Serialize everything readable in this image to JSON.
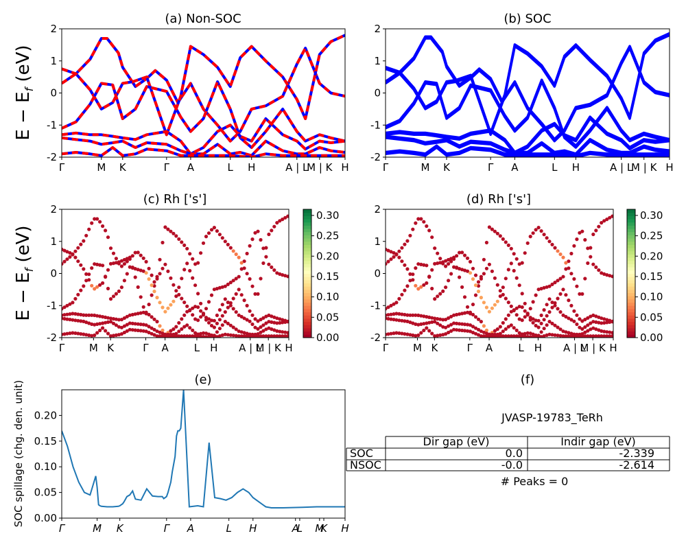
{
  "chart_data": [
    {
      "id": "a",
      "type": "line",
      "title": "(a) Non-SOC",
      "ylabel": "E − E_f (eV)",
      "ylim": [
        -2,
        2
      ],
      "yticks": [
        -2,
        -1,
        0,
        1,
        2
      ],
      "kpath_labels": [
        "Γ",
        "M",
        "K",
        "Γ",
        "A",
        "L",
        "H",
        "A | L",
        "M | K",
        "H"
      ],
      "kpath_pos": [
        0,
        0.14,
        0.215,
        0.37,
        0.455,
        0.595,
        0.67,
        0.83,
        0.91,
        1.0
      ],
      "series": [
        {
          "color": "#0000ff",
          "values": [
            [
              0,
              0.3
            ],
            [
              0.05,
              0.6
            ],
            [
              0.1,
              1.05
            ],
            [
              0.14,
              1.7
            ],
            [
              0.16,
              1.7
            ],
            [
              0.2,
              1.25
            ],
            [
              0.215,
              0.8
            ],
            [
              0.26,
              0.2
            ],
            [
              0.3,
              0.45
            ],
            [
              0.33,
              0.7
            ],
            [
              0.37,
              0.4
            ],
            [
              0.41,
              -0.3
            ],
            [
              0.455,
              0.3
            ],
            [
              0.5,
              -0.5
            ],
            [
              0.55,
              -1.0
            ],
            [
              0.595,
              -1.5
            ],
            [
              0.63,
              -1.2
            ],
            [
              0.67,
              -0.5
            ],
            [
              0.72,
              -0.4
            ],
            [
              0.78,
              -0.1
            ],
            [
              0.83,
              0.9
            ],
            [
              0.86,
              1.4
            ],
            [
              0.91,
              0.3
            ],
            [
              0.95,
              0.0
            ],
            [
              1.0,
              -0.1
            ]
          ]
        },
        {
          "color": "#0000ff",
          "values": [
            [
              0,
              0.75
            ],
            [
              0.05,
              0.6
            ],
            [
              0.1,
              0.1
            ],
            [
              0.14,
              -0.5
            ],
            [
              0.18,
              -0.3
            ],
            [
              0.215,
              0.3
            ],
            [
              0.25,
              0.35
            ],
            [
              0.3,
              0.5
            ],
            [
              0.37,
              -1.3
            ],
            [
              0.42,
              -0.1
            ],
            [
              0.455,
              1.45
            ],
            [
              0.5,
              1.2
            ],
            [
              0.55,
              0.8
            ],
            [
              0.595,
              0.2
            ],
            [
              0.63,
              1.1
            ],
            [
              0.67,
              1.45
            ],
            [
              0.72,
              1.0
            ],
            [
              0.78,
              0.5
            ],
            [
              0.83,
              -0.2
            ],
            [
              0.86,
              -0.8
            ],
            [
              0.91,
              1.2
            ],
            [
              0.95,
              1.6
            ],
            [
              1.0,
              1.8
            ]
          ]
        },
        {
          "color": "#0000ff",
          "values": [
            [
              0,
              -1.1
            ],
            [
              0.05,
              -0.9
            ],
            [
              0.1,
              -0.35
            ],
            [
              0.14,
              0.3
            ],
            [
              0.18,
              0.25
            ],
            [
              0.215,
              -0.8
            ],
            [
              0.26,
              -0.5
            ],
            [
              0.3,
              0.2
            ],
            [
              0.37,
              0.05
            ],
            [
              0.42,
              -0.75
            ],
            [
              0.455,
              -1.2
            ],
            [
              0.5,
              -0.8
            ],
            [
              0.55,
              0.35
            ],
            [
              0.595,
              -0.5
            ],
            [
              0.63,
              -1.4
            ],
            [
              0.67,
              -1.7
            ],
            [
              0.72,
              -1.2
            ],
            [
              0.78,
              -0.5
            ],
            [
              0.83,
              -1.2
            ],
            [
              0.86,
              -1.5
            ],
            [
              0.91,
              -1.3
            ],
            [
              0.95,
              -1.4
            ],
            [
              1.0,
              -1.5
            ]
          ]
        },
        {
          "color": "#0000ff",
          "values": [
            [
              0,
              -1.3
            ],
            [
              0.05,
              -1.25
            ],
            [
              0.1,
              -1.3
            ],
            [
              0.14,
              -1.3
            ],
            [
              0.18,
              -1.35
            ],
            [
              0.215,
              -1.4
            ],
            [
              0.26,
              -1.45
            ],
            [
              0.3,
              -1.3
            ],
            [
              0.37,
              -1.2
            ],
            [
              0.42,
              -1.5
            ],
            [
              0.455,
              -1.9
            ],
            [
              0.5,
              -1.7
            ],
            [
              0.55,
              -1.2
            ],
            [
              0.595,
              -1.0
            ],
            [
              0.63,
              -1.35
            ],
            [
              0.67,
              -1.5
            ],
            [
              0.72,
              -0.8
            ],
            [
              0.78,
              -1.3
            ],
            [
              0.83,
              -1.5
            ],
            [
              0.86,
              -1.75
            ],
            [
              0.91,
              -1.5
            ],
            [
              0.95,
              -1.55
            ],
            [
              1.0,
              -1.5
            ]
          ]
        },
        {
          "color": "#0000ff",
          "values": [
            [
              0,
              -1.4
            ],
            [
              0.05,
              -1.45
            ],
            [
              0.1,
              -1.5
            ],
            [
              0.14,
              -1.6
            ],
            [
              0.18,
              -1.55
            ],
            [
              0.215,
              -1.5
            ],
            [
              0.26,
              -1.7
            ],
            [
              0.3,
              -1.55
            ],
            [
              0.37,
              -1.6
            ],
            [
              0.42,
              -1.8
            ],
            [
              0.455,
              -1.9
            ],
            [
              0.5,
              -1.9
            ],
            [
              0.55,
              -1.6
            ],
            [
              0.595,
              -1.9
            ],
            [
              0.63,
              -1.85
            ],
            [
              0.67,
              -1.95
            ],
            [
              0.72,
              -1.5
            ],
            [
              0.78,
              -1.8
            ],
            [
              0.83,
              -1.9
            ],
            [
              0.86,
              -1.9
            ],
            [
              0.91,
              -1.7
            ],
            [
              0.95,
              -1.8
            ],
            [
              1.0,
              -1.85
            ]
          ]
        },
        {
          "color": "#0000ff",
          "values": [
            [
              0,
              -1.9
            ],
            [
              0.05,
              -1.85
            ],
            [
              0.1,
              -1.9
            ],
            [
              0.14,
              -1.95
            ],
            [
              0.18,
              -1.7
            ],
            [
              0.215,
              -1.95
            ],
            [
              0.26,
              -1.9
            ],
            [
              0.3,
              -1.75
            ],
            [
              0.37,
              -1.8
            ],
            [
              0.42,
              -1.95
            ],
            [
              0.455,
              -1.95
            ],
            [
              0.5,
              -1.95
            ],
            [
              0.55,
              -1.95
            ],
            [
              0.595,
              -1.95
            ],
            [
              0.67,
              -2.0
            ],
            [
              0.72,
              -1.9
            ],
            [
              0.78,
              -1.95
            ],
            [
              0.83,
              -1.95
            ],
            [
              0.91,
              -1.95
            ],
            [
              1.0,
              -1.95
            ]
          ]
        }
      ],
      "overlay_color": "#ff0000"
    },
    {
      "id": "b",
      "type": "line",
      "title": "(b) SOC",
      "ylim": [
        -2,
        2
      ],
      "yticks": [
        -2,
        -1,
        0,
        1,
        2
      ],
      "kpath_labels": [
        "Γ",
        "M",
        "K",
        "Γ",
        "A",
        "L",
        "H",
        "A | L",
        "M | K",
        "H"
      ],
      "kpath_pos": [
        0,
        0.14,
        0.215,
        0.37,
        0.455,
        0.595,
        0.67,
        0.83,
        0.91,
        1.0
      ],
      "color": "#0000ff",
      "series_offsets": [
        0,
        0.06
      ]
    },
    {
      "id": "c",
      "type": "scatter",
      "title": "(c)  Rh ['s']",
      "ylabel": "E − E_f (eV)",
      "ylim": [
        -2,
        2
      ],
      "yticks": [
        -2,
        -1,
        0,
        1,
        2
      ],
      "kpath_labels": [
        "Γ",
        "M",
        "K",
        "Γ",
        "A",
        "L",
        "H",
        "A | L",
        "M | K",
        "H"
      ],
      "kpath_pos": [
        0,
        0.14,
        0.215,
        0.37,
        0.455,
        0.595,
        0.67,
        0.83,
        0.91,
        1.0
      ],
      "colorbar": {
        "min": 0.0,
        "max": 0.3,
        "ticks": [
          "0.30",
          "0.25",
          "0.20",
          "0.15",
          "0.10",
          "0.05",
          "0.00"
        ],
        "colormap": "RdYlGn"
      }
    },
    {
      "id": "d",
      "type": "scatter",
      "title": "(d) Rh ['s']",
      "ylim": [
        -2,
        2
      ],
      "yticks": [
        -2,
        -1,
        0,
        1,
        2
      ],
      "kpath_labels": [
        "Γ",
        "M",
        "K",
        "Γ",
        "A",
        "L",
        "H",
        "A | L",
        "M | K",
        "H"
      ],
      "kpath_pos": [
        0,
        0.14,
        0.215,
        0.37,
        0.455,
        0.595,
        0.67,
        0.83,
        0.91,
        1.0
      ],
      "colorbar": {
        "min": 0.0,
        "max": 0.3,
        "ticks": [
          "0.30",
          "0.25",
          "0.20",
          "0.15",
          "0.10",
          "0.05",
          "0.00"
        ],
        "colormap": "RdYlGn"
      }
    },
    {
      "id": "e",
      "type": "line",
      "title": "(e)",
      "ylabel": "SOC spillage (chg. den. unit)",
      "ylim": [
        0,
        0.25
      ],
      "yticks": [
        "0.00",
        "0.05",
        "0.10",
        "0.15",
        "0.20"
      ],
      "kpath_labels": [
        "Γ",
        "M",
        "K",
        "Γ",
        "A",
        "L",
        "H",
        "A",
        "L",
        "M",
        "K",
        "H"
      ],
      "kpath_pos": [
        0,
        0.125,
        0.205,
        0.37,
        0.455,
        0.59,
        0.675,
        0.825,
        0.84,
        0.91,
        0.925,
        1.0
      ],
      "color": "#1f77b4",
      "x": [
        0,
        0.02,
        0.04,
        0.06,
        0.08,
        0.1,
        0.12,
        0.125,
        0.13,
        0.135,
        0.14,
        0.16,
        0.18,
        0.2,
        0.205,
        0.21,
        0.215,
        0.22,
        0.23,
        0.24,
        0.25,
        0.26,
        0.28,
        0.3,
        0.32,
        0.34,
        0.355,
        0.36,
        0.37,
        0.375,
        0.38,
        0.385,
        0.39,
        0.4,
        0.405,
        0.41,
        0.415,
        0.42,
        0.43,
        0.45,
        0.48,
        0.5,
        0.52,
        0.54,
        0.56,
        0.58,
        0.6,
        0.62,
        0.64,
        0.66,
        0.675,
        0.7,
        0.72,
        0.74,
        0.76,
        0.78,
        0.8,
        0.8,
        0.8,
        0.8
      ],
      "y": [
        0.17,
        0.14,
        0.1,
        0.07,
        0.05,
        0.045,
        0.082,
        0.06,
        0.026,
        0.024,
        0.023,
        0.022,
        0.022,
        0.023,
        0.024,
        0.026,
        0.028,
        0.032,
        0.042,
        0.045,
        0.053,
        0.037,
        0.035,
        0.057,
        0.043,
        0.042,
        0.042,
        0.038,
        0.042,
        0.05,
        0.06,
        0.07,
        0.09,
        0.12,
        0.16,
        0.17,
        0.17,
        0.175,
        0.25,
        0.022,
        0.024,
        0.022,
        0.147,
        0.04,
        0.038,
        0.035,
        0.04,
        0.05,
        0.057,
        0.05,
        0.04,
        0.03,
        0.022,
        0.02,
        0.02,
        0.02,
        0.021,
        0.022,
        0.022,
        0.022
      ]
    },
    {
      "id": "f",
      "type": "table",
      "title": "(f)",
      "name": "JVASP-19783_TeRh",
      "columns": [
        "",
        "Dir gap (eV)",
        "Indir gap (eV)"
      ],
      "rows": [
        [
          "SOC",
          "0.0",
          "-2.339"
        ],
        [
          "NSOC",
          "-0.0",
          "-2.614"
        ]
      ],
      "footer": "# Peaks = 0"
    }
  ]
}
